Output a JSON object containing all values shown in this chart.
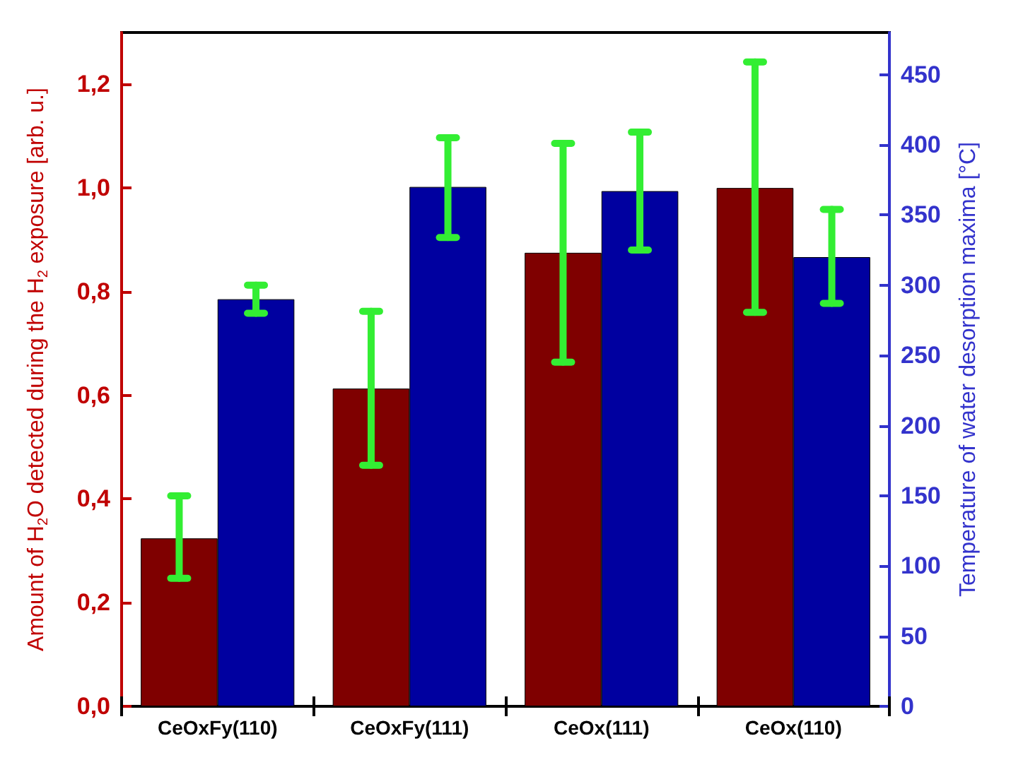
{
  "chart_data": {
    "type": "bar",
    "categories": [
      "CeOxFy(110)",
      "CeOxFy(111)",
      "CeOx(111)",
      "CeOx(110)"
    ],
    "ylabel": "Amount of H$_{2}$O detected during the H$_{2}$ exposure [arb. u.]",
    "y2label": "Temperature of water desorption maxima [°C]",
    "ylim": [
      0,
      1.3
    ],
    "yticks": [
      {
        "value": 0,
        "label": "0,0"
      },
      {
        "value": 0.2,
        "label": "0,2"
      },
      {
        "value": 0.4,
        "label": "0,4"
      },
      {
        "value": 0.6,
        "label": "0,6"
      },
      {
        "value": 0.8,
        "label": "0,8"
      },
      {
        "value": 1,
        "label": "1,0"
      },
      {
        "value": 1.2,
        "label": "1,2"
      }
    ],
    "y2lim": [
      0,
      480
    ],
    "y2ticks": [
      0,
      50,
      100,
      150,
      200,
      250,
      300,
      350,
      400,
      450
    ],
    "series": [
      {
        "color": "#7f0000",
        "values": [
          0.324,
          0.613,
          0.875,
          1.0
        ],
        "errors": [
          [
            0.247,
            0.406
          ],
          [
            0.465,
            0.762
          ],
          [
            0.664,
            1.086
          ],
          [
            0.76,
            1.243
          ]
        ]
      },
      {
        "color": "#0000a0",
        "axis": "y2",
        "values": [
          290,
          370,
          367,
          320
        ],
        "errors": [
          [
            280,
            300
          ],
          [
            334,
            405
          ],
          [
            325,
            409
          ],
          [
            287,
            354
          ]
        ]
      }
    ],
    "grid": false
  }
}
